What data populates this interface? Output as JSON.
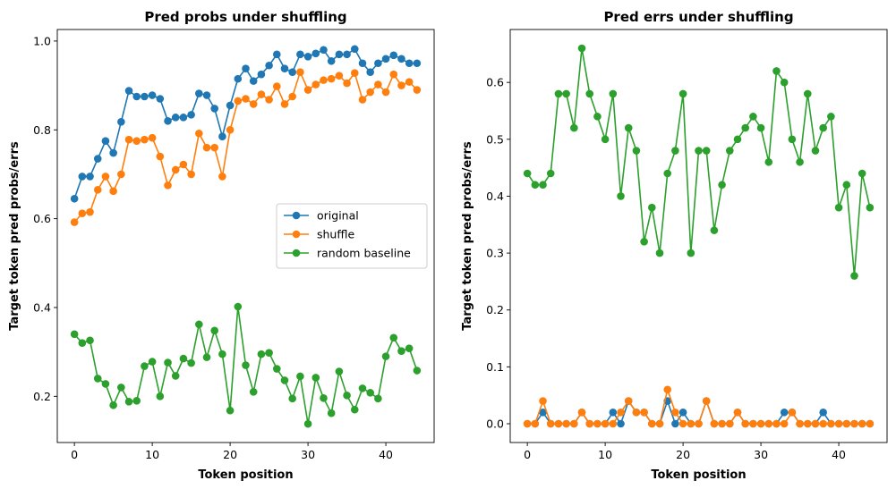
{
  "colors": {
    "original": "#1f77b4",
    "shuffle": "#ff7f0e",
    "random baseline": "#2ca02c"
  },
  "chart_data": [
    {
      "type": "line",
      "title": "Pred probs under shuffling",
      "xlabel": "Token position",
      "ylabel": "Target token pred probs/errs",
      "xlim": [
        -2.2,
        46.2
      ],
      "ylim": [
        0.096,
        1.026
      ],
      "xticks": [
        0,
        10,
        20,
        30,
        40
      ],
      "yticks": [
        0.2,
        0.4,
        0.6,
        0.8,
        1.0
      ],
      "yticklabels": [
        "0.2",
        "0.4",
        "0.6",
        "0.8",
        "1.0"
      ],
      "grid": false,
      "legend_position": "center-right",
      "x": [
        0,
        1,
        2,
        3,
        4,
        5,
        6,
        7,
        8,
        9,
        10,
        11,
        12,
        13,
        14,
        15,
        16,
        17,
        18,
        19,
        20,
        21,
        22,
        23,
        24,
        25,
        26,
        27,
        28,
        29,
        30,
        31,
        32,
        33,
        34,
        35,
        36,
        37,
        38,
        39,
        40,
        41,
        42,
        43,
        44
      ],
      "series": [
        {
          "name": "original",
          "values": [
            0.645,
            0.695,
            0.695,
            0.735,
            0.775,
            0.748,
            0.818,
            0.888,
            0.875,
            0.875,
            0.878,
            0.87,
            0.82,
            0.828,
            0.828,
            0.834,
            0.882,
            0.878,
            0.848,
            0.785,
            0.855,
            0.915,
            0.938,
            0.91,
            0.925,
            0.945,
            0.97,
            0.938,
            0.93,
            0.97,
            0.965,
            0.972,
            0.98,
            0.955,
            0.97,
            0.97,
            0.982,
            0.95,
            0.93,
            0.95,
            0.96,
            0.968,
            0.96,
            0.95,
            0.95
          ]
        },
        {
          "name": "shuffle",
          "values": [
            0.592,
            0.612,
            0.615,
            0.665,
            0.695,
            0.662,
            0.7,
            0.778,
            0.775,
            0.778,
            0.782,
            0.74,
            0.675,
            0.71,
            0.722,
            0.7,
            0.792,
            0.76,
            0.76,
            0.695,
            0.8,
            0.865,
            0.87,
            0.858,
            0.88,
            0.868,
            0.898,
            0.858,
            0.875,
            0.93,
            0.89,
            0.902,
            0.912,
            0.915,
            0.922,
            0.905,
            0.928,
            0.868,
            0.885,
            0.902,
            0.885,
            0.925,
            0.9,
            0.908,
            0.89
          ]
        },
        {
          "name": "random baseline",
          "values": [
            0.34,
            0.32,
            0.326,
            0.24,
            0.228,
            0.18,
            0.22,
            0.188,
            0.19,
            0.268,
            0.278,
            0.2,
            0.276,
            0.246,
            0.285,
            0.275,
            0.362,
            0.288,
            0.348,
            0.295,
            0.168,
            0.402,
            0.27,
            0.21,
            0.295,
            0.298,
            0.262,
            0.236,
            0.195,
            0.245,
            0.138,
            0.242,
            0.196,
            0.162,
            0.256,
            0.202,
            0.17,
            0.218,
            0.208,
            0.195,
            0.29,
            0.332,
            0.302,
            0.308,
            0.258
          ]
        }
      ]
    },
    {
      "type": "line",
      "title": "Pred errs under shuffling",
      "xlabel": "Token position",
      "ylabel": "Target token pred probs/errs",
      "xlim": [
        -2.2,
        46.2
      ],
      "ylim": [
        -0.033,
        0.693
      ],
      "xticks": [
        0,
        10,
        20,
        30,
        40
      ],
      "yticks": [
        0.0,
        0.1,
        0.2,
        0.3,
        0.4,
        0.5,
        0.6
      ],
      "yticklabels": [
        "0.0",
        "0.1",
        "0.2",
        "0.3",
        "0.4",
        "0.5",
        "0.6"
      ],
      "grid": false,
      "x": [
        0,
        1,
        2,
        3,
        4,
        5,
        6,
        7,
        8,
        9,
        10,
        11,
        12,
        13,
        14,
        15,
        16,
        17,
        18,
        19,
        20,
        21,
        22,
        23,
        24,
        25,
        26,
        27,
        28,
        29,
        30,
        31,
        32,
        33,
        34,
        35,
        36,
        37,
        38,
        39,
        40,
        41,
        42,
        43,
        44
      ],
      "series": [
        {
          "name": "original",
          "values": [
            0,
            0,
            0.02,
            0,
            0,
            0,
            0,
            0.02,
            0,
            0,
            0,
            0.02,
            0,
            0.04,
            0.02,
            0.02,
            0,
            0,
            0.04,
            0,
            0.02,
            0,
            0,
            0.04,
            0,
            0,
            0,
            0.02,
            0,
            0,
            0,
            0,
            0,
            0.02,
            0.02,
            0,
            0,
            0,
            0.02,
            0,
            0,
            0,
            0,
            0,
            0
          ]
        },
        {
          "name": "shuffle",
          "values": [
            0,
            0,
            0.04,
            0,
            0,
            0,
            0,
            0.02,
            0,
            0,
            0,
            0,
            0.02,
            0.04,
            0.02,
            0.02,
            0,
            0,
            0.06,
            0.02,
            0,
            0,
            0,
            0.04,
            0,
            0,
            0,
            0.02,
            0,
            0,
            0,
            0,
            0,
            0,
            0.02,
            0,
            0,
            0,
            0,
            0,
            0,
            0,
            0,
            0,
            0
          ]
        },
        {
          "name": "random baseline",
          "values": [
            0.44,
            0.42,
            0.42,
            0.44,
            0.58,
            0.58,
            0.52,
            0.66,
            0.58,
            0.54,
            0.5,
            0.58,
            0.4,
            0.52,
            0.48,
            0.32,
            0.38,
            0.3,
            0.44,
            0.48,
            0.58,
            0.3,
            0.48,
            0.48,
            0.34,
            0.42,
            0.48,
            0.5,
            0.52,
            0.54,
            0.52,
            0.46,
            0.62,
            0.6,
            0.5,
            0.46,
            0.58,
            0.48,
            0.52,
            0.54,
            0.38,
            0.42,
            0.26,
            0.44,
            0.38
          ]
        }
      ]
    }
  ]
}
